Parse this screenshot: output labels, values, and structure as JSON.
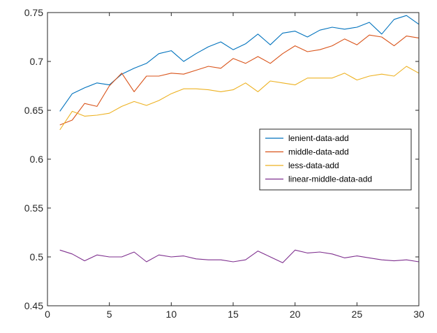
{
  "chart_data": {
    "type": "line",
    "title": "",
    "xlabel": "",
    "ylabel": "",
    "xlim": [
      0,
      30
    ],
    "ylim": [
      0.45,
      0.75
    ],
    "x_ticks": [
      0,
      5,
      10,
      15,
      20,
      25,
      30
    ],
    "y_ticks": [
      0.45,
      0.5,
      0.55,
      0.6,
      0.65,
      0.7,
      0.75
    ],
    "x_tick_labels": [
      "0",
      "5",
      "10",
      "15",
      "20",
      "25",
      "30"
    ],
    "y_tick_labels": [
      "0.45",
      "0.5",
      "0.55",
      "0.6",
      "0.65",
      "0.7",
      "0.75"
    ],
    "grid": false,
    "legend_position": "right",
    "x": [
      1,
      2,
      3,
      4,
      5,
      6,
      7,
      8,
      9,
      10,
      11,
      12,
      13,
      14,
      15,
      16,
      17,
      18,
      19,
      20,
      21,
      22,
      23,
      24,
      25,
      26,
      27,
      28,
      29,
      30
    ],
    "series": [
      {
        "name": "lenient-data-add",
        "color": "#0072BD",
        "values": [
          0.649,
          0.667,
          0.673,
          0.678,
          0.676,
          0.687,
          0.693,
          0.698,
          0.708,
          0.711,
          0.7,
          0.708,
          0.715,
          0.72,
          0.712,
          0.718,
          0.728,
          0.717,
          0.729,
          0.731,
          0.725,
          0.732,
          0.735,
          0.733,
          0.735,
          0.74,
          0.728,
          0.743,
          0.747,
          0.738
        ]
      },
      {
        "name": "middle-data-add",
        "color": "#D95319",
        "values": [
          0.635,
          0.64,
          0.657,
          0.654,
          0.675,
          0.688,
          0.669,
          0.685,
          0.685,
          0.688,
          0.687,
          0.691,
          0.695,
          0.693,
          0.703,
          0.698,
          0.705,
          0.698,
          0.708,
          0.716,
          0.71,
          0.712,
          0.716,
          0.723,
          0.717,
          0.727,
          0.725,
          0.716,
          0.726,
          0.724
        ]
      },
      {
        "name": "less-data-add",
        "color": "#EDB120",
        "values": [
          0.63,
          0.649,
          0.644,
          0.645,
          0.647,
          0.654,
          0.659,
          0.655,
          0.66,
          0.667,
          0.672,
          0.672,
          0.671,
          0.669,
          0.671,
          0.678,
          0.669,
          0.68,
          0.678,
          0.676,
          0.683,
          0.683,
          0.683,
          0.688,
          0.681,
          0.685,
          0.687,
          0.685,
          0.695,
          0.688
        ]
      },
      {
        "name": "linear-middle-data-add",
        "color": "#7E2F8E",
        "values": [
          0.507,
          0.503,
          0.496,
          0.502,
          0.5,
          0.5,
          0.505,
          0.495,
          0.502,
          0.5,
          0.501,
          0.498,
          0.497,
          0.497,
          0.495,
          0.497,
          0.506,
          0.5,
          0.494,
          0.507,
          0.504,
          0.505,
          0.503,
          0.499,
          0.501,
          0.499,
          0.497,
          0.496,
          0.497,
          0.495
        ]
      }
    ]
  }
}
